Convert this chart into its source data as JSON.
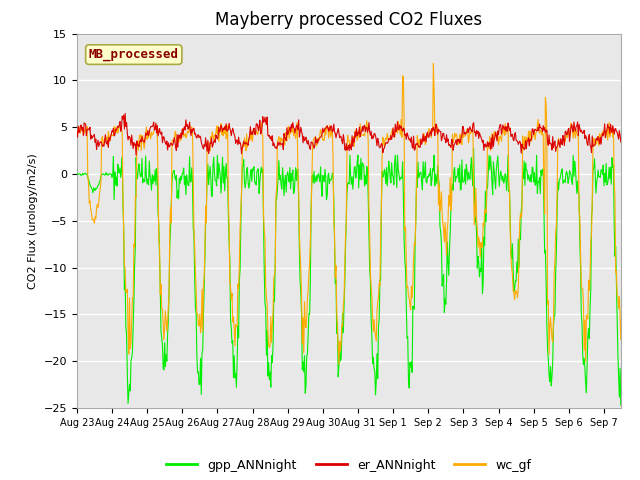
{
  "title": "Mayberry processed CO2 Fluxes",
  "ylabel": "CO2 Flux (urology/m2/s)",
  "legend_labels": [
    "gpp_ANNnight",
    "er_ANNnight",
    "wc_gf"
  ],
  "legend_colors": [
    "#00ee00",
    "#dd0000",
    "#ffaa00"
  ],
  "annotation_text": "MB_processed",
  "annotation_bg": "#ffffcc",
  "annotation_edge": "#aaaa44",
  "annotation_text_color": "#880000",
  "ylim": [
    -25,
    15
  ],
  "plot_bg": "#e8e8e8",
  "n_days": 15.5,
  "points_per_day": 48,
  "title_fontsize": 12,
  "line_width": 0.8
}
